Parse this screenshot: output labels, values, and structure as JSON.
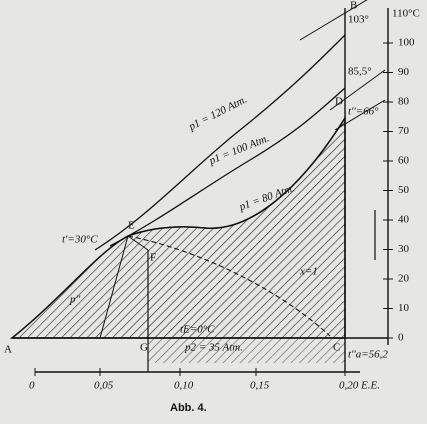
{
  "y_axis": {
    "unit": "110°C",
    "ticks": [
      "0",
      "10",
      "20",
      "30",
      "40",
      "50",
      "60",
      "70",
      "80",
      "90",
      "100"
    ]
  },
  "x_axis": {
    "ticks": [
      "0",
      "0,05",
      "0,10",
      "0,15",
      "0,20 E.E."
    ]
  },
  "isobars": [
    "p1 = 120 Atm.",
    "p1 = 100 Atm.",
    "p1 = 80 Atm."
  ],
  "temperatures": {
    "t103": "103°",
    "t85": "85,5°",
    "t66": "t''=66°",
    "t30": "t'=30°C",
    "t0": "tE=0°C",
    "t56": "t''a=56,2"
  },
  "points": {
    "A": "A",
    "B": "B",
    "C": "C",
    "D": "D",
    "E": "E",
    "F": "F",
    "G": "G"
  },
  "curve_labels": {
    "x1": "x=1",
    "p2": "p2 = 35 Atm.",
    "pE": "p''"
  },
  "caption": "Abb. 4."
}
